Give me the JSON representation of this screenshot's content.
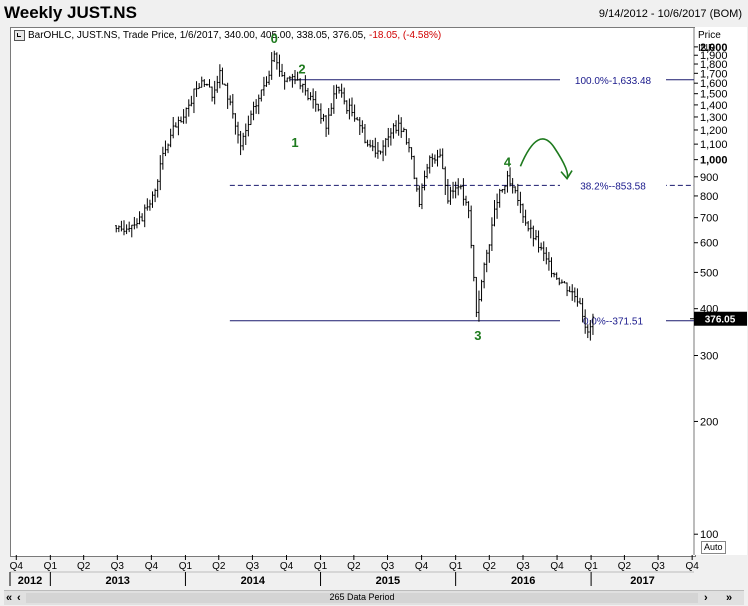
{
  "header": {
    "title": "Weekly JUST.NS",
    "date_range": "9/14/2012 - 10/6/2017 (BOM)"
  },
  "legend": {
    "series_label": "BarOHLC, JUST.NS, Trade Price, 1/6/2017, 340.00, 405.00, 338.05, 376.05,",
    "change": "-18.05, (-4.58%)"
  },
  "axis": {
    "price_label": "Price",
    "currency_label": "INR",
    "auto_label": "Auto",
    "last_price": "376.05"
  },
  "scrollbar": {
    "period_label": "265 Data Period",
    "left_button": "«",
    "prev_button": "‹",
    "next_button": "›",
    "right_button": "»"
  },
  "colors": {
    "bars": "#000000",
    "fib_line": "#1a1a6e",
    "fib_text": "#1a1a8c",
    "wave_label": "#1e7a1e",
    "arrow": "#1e7a1e",
    "last_price_bg": "#000000"
  },
  "chart_data": {
    "type": "bar",
    "subtype": "ohlc",
    "y_scale": "log",
    "ylim": [
      88,
      2260
    ],
    "y_ticks": [
      100,
      200,
      300,
      400,
      500,
      600,
      700,
      800,
      900,
      1000,
      1100,
      1200,
      1300,
      1400,
      1500,
      1600,
      1700,
      1800,
      1900,
      2000
    ],
    "y_tick_labels": [
      "100",
      "200",
      "300",
      "400",
      "500",
      "600",
      "700",
      "800",
      "900",
      "1,000",
      "1,100",
      "1,200",
      "1,300",
      "1,400",
      "1,500",
      "1,600",
      "1,700",
      "1,800",
      "1,900",
      "2,000"
    ],
    "y_bold_ticks": [
      1000,
      2000
    ],
    "x_range": [
      "2012-09-14",
      "2017-10-06"
    ],
    "quarter_ticks": [
      {
        "date": "2012-10-01",
        "label": "Q4"
      },
      {
        "date": "2013-01-01",
        "label": "Q1"
      },
      {
        "date": "2013-04-01",
        "label": "Q2"
      },
      {
        "date": "2013-07-01",
        "label": "Q3"
      },
      {
        "date": "2013-10-01",
        "label": "Q4"
      },
      {
        "date": "2014-01-01",
        "label": "Q1"
      },
      {
        "date": "2014-04-01",
        "label": "Q2"
      },
      {
        "date": "2014-07-01",
        "label": "Q3"
      },
      {
        "date": "2014-10-01",
        "label": "Q4"
      },
      {
        "date": "2015-01-01",
        "label": "Q1"
      },
      {
        "date": "2015-04-01",
        "label": "Q2"
      },
      {
        "date": "2015-07-01",
        "label": "Q3"
      },
      {
        "date": "2015-10-01",
        "label": "Q4"
      },
      {
        "date": "2016-01-01",
        "label": "Q1"
      },
      {
        "date": "2016-04-01",
        "label": "Q2"
      },
      {
        "date": "2016-07-01",
        "label": "Q3"
      },
      {
        "date": "2016-10-01",
        "label": "Q4"
      },
      {
        "date": "2017-01-01",
        "label": "Q1"
      },
      {
        "date": "2017-04-01",
        "label": "Q2"
      },
      {
        "date": "2017-07-01",
        "label": "Q3"
      },
      {
        "date": "2017-10-01",
        "label": "Q4"
      }
    ],
    "year_labels": [
      {
        "label": "2012",
        "start": "2012-09-14",
        "end": "2012-12-31"
      },
      {
        "label": "2013",
        "start": "2013-01-01",
        "end": "2013-12-31"
      },
      {
        "label": "2014",
        "start": "2014-01-01",
        "end": "2014-12-31"
      },
      {
        "label": "2015",
        "start": "2015-01-01",
        "end": "2015-12-31"
      },
      {
        "label": "2016",
        "start": "2016-01-01",
        "end": "2016-12-31"
      },
      {
        "label": "2017",
        "start": "2017-01-01",
        "end": "2017-10-06"
      }
    ],
    "price_anchors": [
      {
        "date": "2013-06-28",
        "price": 640
      },
      {
        "date": "2013-07-26",
        "price": 665
      },
      {
        "date": "2013-09-06",
        "price": 700
      },
      {
        "date": "2013-10-04",
        "price": 790
      },
      {
        "date": "2013-11-01",
        "price": 1020
      },
      {
        "date": "2013-11-29",
        "price": 1200
      },
      {
        "date": "2013-12-27",
        "price": 1280
      },
      {
        "date": "2014-01-24",
        "price": 1500
      },
      {
        "date": "2014-02-14",
        "price": 1650
      },
      {
        "date": "2014-03-14",
        "price": 1480
      },
      {
        "date": "2014-04-04",
        "price": 1690
      },
      {
        "date": "2014-05-02",
        "price": 1420
      },
      {
        "date": "2014-05-30",
        "price": 1080
      },
      {
        "date": "2014-06-27",
        "price": 1300
      },
      {
        "date": "2014-07-25",
        "price": 1520
      },
      {
        "date": "2014-08-29",
        "price": 1860
      },
      {
        "date": "2014-09-26",
        "price": 1640
      },
      {
        "date": "2014-10-24",
        "price": 1680
      },
      {
        "date": "2014-11-21",
        "price": 1500
      },
      {
        "date": "2014-12-19",
        "price": 1420
      },
      {
        "date": "2015-01-16",
        "price": 1230
      },
      {
        "date": "2015-02-13",
        "price": 1580
      },
      {
        "date": "2015-03-13",
        "price": 1390
      },
      {
        "date": "2015-04-10",
        "price": 1300
      },
      {
        "date": "2015-05-08",
        "price": 1100
      },
      {
        "date": "2015-06-05",
        "price": 1060
      },
      {
        "date": "2015-07-03",
        "price": 1130
      },
      {
        "date": "2015-07-31",
        "price": 1270
      },
      {
        "date": "2015-08-28",
        "price": 1080
      },
      {
        "date": "2015-09-25",
        "price": 780
      },
      {
        "date": "2015-10-23",
        "price": 1000
      },
      {
        "date": "2015-11-20",
        "price": 1050
      },
      {
        "date": "2015-12-11",
        "price": 780
      },
      {
        "date": "2016-01-08",
        "price": 870
      },
      {
        "date": "2016-02-05",
        "price": 720
      },
      {
        "date": "2016-02-26",
        "price": 395
      },
      {
        "date": "2016-03-25",
        "price": 560
      },
      {
        "date": "2016-04-22",
        "price": 780
      },
      {
        "date": "2016-05-20",
        "price": 880
      },
      {
        "date": "2016-06-17",
        "price": 780
      },
      {
        "date": "2016-07-15",
        "price": 660
      },
      {
        "date": "2016-08-12",
        "price": 590
      },
      {
        "date": "2016-09-09",
        "price": 520
      },
      {
        "date": "2016-10-07",
        "price": 480
      },
      {
        "date": "2016-11-04",
        "price": 450
      },
      {
        "date": "2016-12-02",
        "price": 420
      },
      {
        "date": "2016-12-23",
        "price": 340
      },
      {
        "date": "2017-01-06",
        "price": 376
      }
    ],
    "fib_levels": [
      {
        "label": "100.0%-1,633.48",
        "value": 1633.48,
        "style": "solid",
        "start": "2014-10-10"
      },
      {
        "label": "38.2%--853.58",
        "value": 853.58,
        "style": "dashed",
        "start": "2014-05-01"
      },
      {
        "label": "0.0%--371.51",
        "value": 371.51,
        "style": "solid",
        "start": "2014-05-01"
      }
    ],
    "wave_labels": [
      {
        "label": "0",
        "date": "2014-08-29",
        "price": 2050
      },
      {
        "label": "2",
        "date": "2014-11-12",
        "price": 1700
      },
      {
        "label": "1",
        "date": "2014-10-24",
        "price": 1080
      },
      {
        "label": "4",
        "date": "2016-05-20",
        "price": 960
      },
      {
        "label": "3",
        "date": "2016-03-01",
        "price": 330
      }
    ],
    "annotation_arrow": {
      "from": {
        "date": "2016-06-24",
        "price": 960
      },
      "peak": {
        "date": "2016-09-02",
        "price": 1090
      },
      "to": {
        "date": "2016-10-28",
        "price": 890
      }
    }
  }
}
